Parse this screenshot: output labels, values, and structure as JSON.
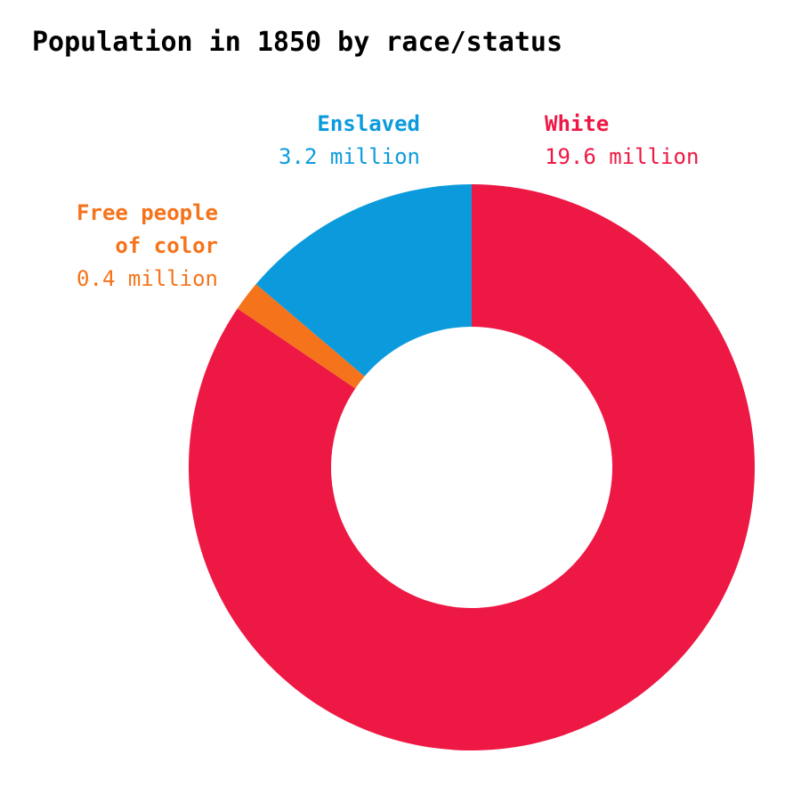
{
  "chart_data": {
    "type": "donut",
    "title": "Population in 1850 by race/status",
    "categories": [
      "White",
      "Free people of color",
      "Enslaved"
    ],
    "values": [
      19.6,
      0.4,
      3.2
    ],
    "value_labels": [
      "19.6 million",
      "0.4 million",
      "3.2 million"
    ],
    "colors": [
      "#ee1844",
      "#f5731a",
      "#0b9bdc"
    ]
  }
}
